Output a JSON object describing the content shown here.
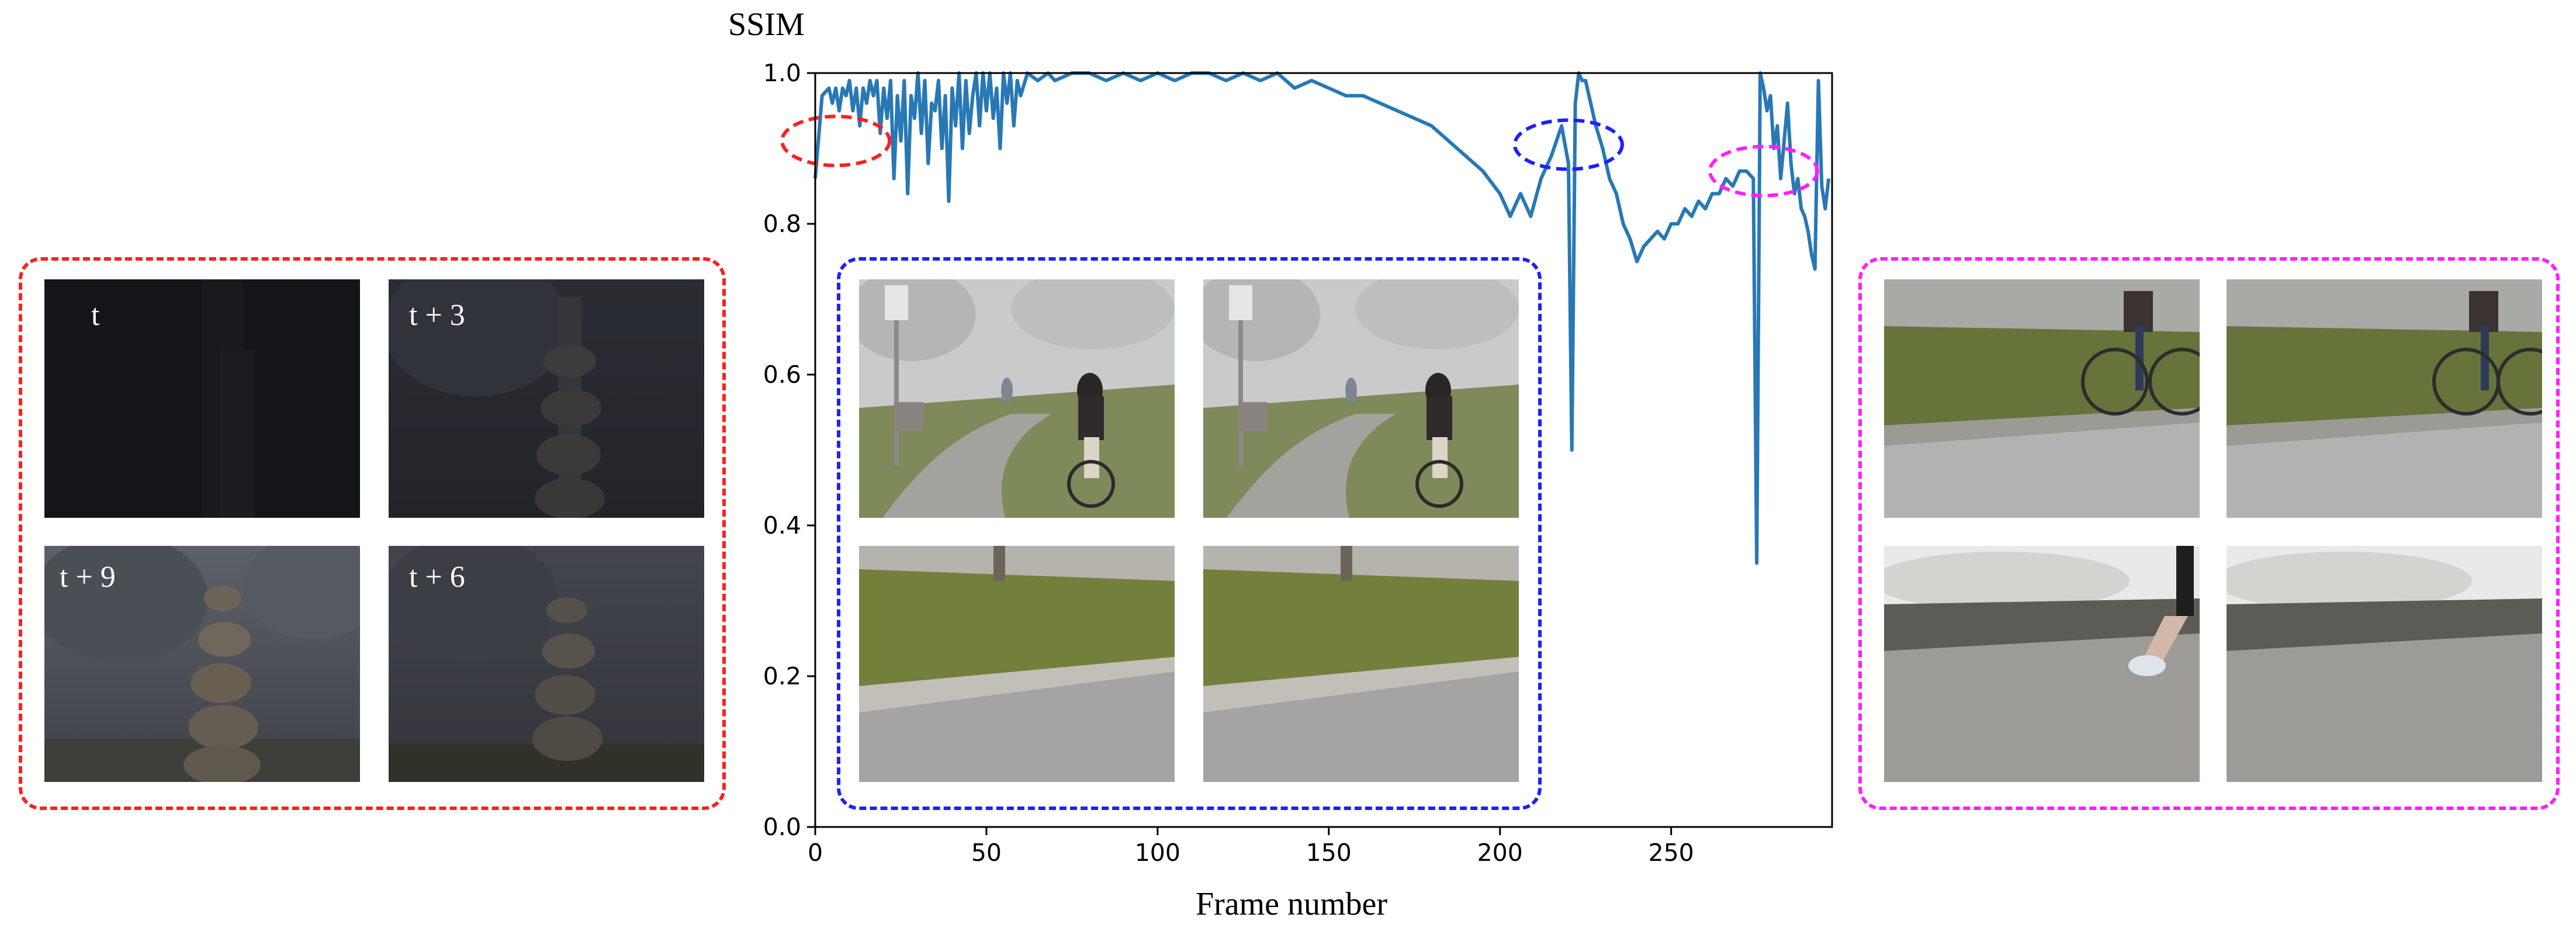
{
  "chart_data": {
    "type": "line",
    "ylabel": "SSIM",
    "xlabel": "Frame number",
    "xlim": [
      0,
      297
    ],
    "ylim": [
      0.0,
      1.0
    ],
    "x_ticks": [
      "0",
      "50",
      "100",
      "150",
      "200",
      "250"
    ],
    "y_ticks": [
      "0.0",
      "0.2",
      "0.4",
      "0.6",
      "0.8",
      "1.0"
    ],
    "grid": false,
    "colors": {
      "line": "#2878b5"
    },
    "series": [
      {
        "x": [
          0,
          2,
          4,
          5,
          6,
          7,
          8,
          9,
          10,
          11,
          12,
          13,
          14,
          15,
          16,
          17,
          18,
          19,
          20,
          21,
          22,
          23,
          24,
          25,
          26,
          27,
          28,
          29,
          30,
          31,
          32,
          33,
          34,
          35,
          36,
          37,
          38,
          39,
          40,
          41,
          42,
          43,
          44,
          45,
          46,
          47,
          48,
          49,
          50,
          51,
          52,
          53,
          54,
          55,
          56,
          57,
          58,
          59,
          60,
          62,
          65,
          68,
          70,
          75,
          80,
          85,
          90,
          95,
          100,
          105,
          110,
          115,
          120,
          125,
          130,
          135,
          140,
          145,
          150,
          155,
          160,
          165,
          170,
          175,
          180,
          185,
          190,
          195,
          200,
          203,
          206,
          209,
          212,
          215,
          218,
          220,
          221,
          222,
          223,
          224,
          225,
          226,
          228,
          230,
          232,
          234,
          236,
          238,
          240,
          242,
          244,
          246,
          248,
          250,
          252,
          254,
          256,
          258,
          260,
          262,
          264,
          266,
          268,
          270,
          272,
          274,
          275,
          276,
          277,
          278,
          279,
          280,
          281,
          282,
          283,
          284,
          285,
          286,
          287,
          288,
          289,
          290,
          291,
          292,
          293,
          294,
          295,
          296
        ],
        "values": [
          0.86,
          0.97,
          0.98,
          0.96,
          0.98,
          0.95,
          0.98,
          0.97,
          0.99,
          0.95,
          0.98,
          0.93,
          0.98,
          0.96,
          0.99,
          0.97,
          0.99,
          0.92,
          0.98,
          0.94,
          0.99,
          0.86,
          0.97,
          0.91,
          0.99,
          0.84,
          0.97,
          0.94,
          1.0,
          0.92,
          0.99,
          0.88,
          0.96,
          0.95,
          0.99,
          0.9,
          0.97,
          0.83,
          0.98,
          0.93,
          1.0,
          0.9,
          0.99,
          0.92,
          0.97,
          1.0,
          0.93,
          1.0,
          0.95,
          1.0,
          0.94,
          0.98,
          0.9,
          1.0,
          0.96,
          1.0,
          0.93,
          0.99,
          0.97,
          1.0,
          0.99,
          1.0,
          0.99,
          1.0,
          1.0,
          0.99,
          1.0,
          0.99,
          1.0,
          0.99,
          1.0,
          1.0,
          0.99,
          1.0,
          0.99,
          1.0,
          0.98,
          0.99,
          0.98,
          0.97,
          0.97,
          0.96,
          0.95,
          0.94,
          0.93,
          0.91,
          0.89,
          0.87,
          0.84,
          0.81,
          0.84,
          0.81,
          0.86,
          0.89,
          0.93,
          0.88,
          0.5,
          0.96,
          1.0,
          0.99,
          0.99,
          0.97,
          0.93,
          0.9,
          0.86,
          0.84,
          0.8,
          0.78,
          0.75,
          0.77,
          0.78,
          0.79,
          0.78,
          0.8,
          0.8,
          0.82,
          0.81,
          0.83,
          0.82,
          0.84,
          0.84,
          0.86,
          0.85,
          0.87,
          0.87,
          0.86,
          0.35,
          1.0,
          0.98,
          0.95,
          0.97,
          0.9,
          0.93,
          0.86,
          0.91,
          0.96,
          0.88,
          0.84,
          0.86,
          0.82,
          0.81,
          0.79,
          0.76,
          0.74,
          0.99,
          0.85,
          0.82,
          0.86
        ]
      }
    ],
    "annotations": [
      {
        "shape": "ellipse",
        "color": "#ff1f1f",
        "x": 6,
        "y": 0.91
      },
      {
        "shape": "ellipse",
        "color": "#1f1fff",
        "x": 220,
        "y": 0.905
      },
      {
        "shape": "ellipse",
        "color": "#ff1fff",
        "x": 277,
        "y": 0.87
      }
    ]
  },
  "panels": {
    "red": {
      "color": "#ff1f1f",
      "labels": [
        "t",
        "t + 3",
        "t + 9",
        "t + 6"
      ]
    },
    "blue": {
      "color": "#1f1fff"
    },
    "magenta": {
      "color": "#ff1fff"
    }
  }
}
